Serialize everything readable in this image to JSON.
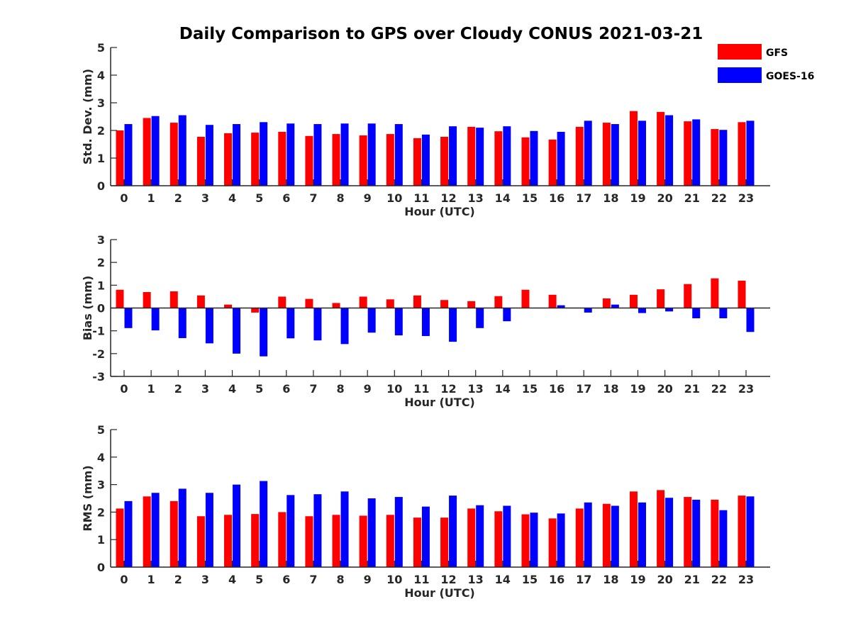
{
  "title": "Daily Comparison to GPS over Cloudy CONUS 2021-03-21",
  "legend": {
    "placement": "top-right",
    "entries": [
      {
        "name": "GFS",
        "color": "#ff0000"
      },
      {
        "name": "GOES-16",
        "color": "#0000ff"
      }
    ]
  },
  "chart_data": [
    {
      "type": "bar",
      "xlabel": "Hour (UTC)",
      "ylabel": "Std. Dev. (mm)",
      "ylim": [
        0,
        5
      ],
      "yticks": [
        "0",
        "1",
        "2",
        "3",
        "4",
        "5"
      ],
      "categories": [
        "0",
        "1",
        "2",
        "3",
        "4",
        "5",
        "6",
        "7",
        "8",
        "9",
        "10",
        "11",
        "12",
        "13",
        "14",
        "15",
        "16",
        "17",
        "18",
        "19",
        "20",
        "21",
        "22",
        "23"
      ],
      "series": [
        {
          "name": "GFS",
          "color": "#ff0000",
          "values": [
            2.0,
            2.45,
            2.28,
            1.77,
            1.9,
            1.92,
            1.95,
            1.8,
            1.87,
            1.82,
            1.87,
            1.72,
            1.77,
            2.13,
            1.97,
            1.75,
            1.67,
            2.13,
            2.28,
            2.7,
            2.67,
            2.33,
            2.05,
            2.3
          ]
        },
        {
          "name": "GOES-16",
          "color": "#0000ff",
          "values": [
            2.23,
            2.52,
            2.55,
            2.2,
            2.23,
            2.3,
            2.25,
            2.23,
            2.25,
            2.25,
            2.23,
            1.85,
            2.15,
            2.1,
            2.15,
            1.98,
            1.95,
            2.35,
            2.23,
            2.35,
            2.55,
            2.4,
            2.02,
            2.35
          ]
        }
      ]
    },
    {
      "type": "bar",
      "xlabel": "Hour (UTC)",
      "ylabel": "Bias (mm)",
      "ylim": [
        -3,
        3
      ],
      "yticks": [
        "-3",
        "-2",
        "-1",
        "0",
        "1",
        "2",
        "3"
      ],
      "categories": [
        "0",
        "1",
        "2",
        "3",
        "4",
        "5",
        "6",
        "7",
        "8",
        "9",
        "10",
        "11",
        "12",
        "13",
        "14",
        "15",
        "16",
        "17",
        "18",
        "19",
        "20",
        "21",
        "22",
        "23"
      ],
      "series": [
        {
          "name": "GFS",
          "color": "#ff0000",
          "values": [
            0.8,
            0.7,
            0.73,
            0.55,
            0.15,
            -0.2,
            0.5,
            0.4,
            0.22,
            0.5,
            0.38,
            0.55,
            0.35,
            0.3,
            0.52,
            0.8,
            0.58,
            0.0,
            0.42,
            0.58,
            0.82,
            1.05,
            1.3,
            1.2
          ]
        },
        {
          "name": "GOES-16",
          "color": "#0000ff",
          "values": [
            -0.88,
            -0.98,
            -1.32,
            -1.55,
            -2.0,
            -2.12,
            -1.33,
            -1.42,
            -1.58,
            -1.08,
            -1.2,
            -1.23,
            -1.48,
            -0.88,
            -0.58,
            0.0,
            0.12,
            -0.2,
            0.15,
            -0.22,
            -0.15,
            -0.45,
            -0.45,
            -1.05
          ]
        }
      ]
    },
    {
      "type": "bar",
      "xlabel": "Hour (UTC)",
      "ylabel": "RMS (mm)",
      "ylim": [
        0,
        5
      ],
      "yticks": [
        "0",
        "1",
        "2",
        "3",
        "4",
        "5"
      ],
      "categories": [
        "0",
        "1",
        "2",
        "3",
        "4",
        "5",
        "6",
        "7",
        "8",
        "9",
        "10",
        "11",
        "12",
        "13",
        "14",
        "15",
        "16",
        "17",
        "18",
        "19",
        "20",
        "21",
        "22",
        "23"
      ],
      "series": [
        {
          "name": "GFS",
          "color": "#ff0000",
          "values": [
            2.13,
            2.57,
            2.4,
            1.85,
            1.9,
            1.93,
            2.0,
            1.85,
            1.9,
            1.87,
            1.9,
            1.8,
            1.8,
            2.13,
            2.03,
            1.92,
            1.77,
            2.13,
            2.3,
            2.75,
            2.8,
            2.55,
            2.45,
            2.6
          ]
        },
        {
          "name": "GOES-16",
          "color": "#0000ff",
          "values": [
            2.4,
            2.7,
            2.85,
            2.7,
            3.0,
            3.13,
            2.62,
            2.65,
            2.75,
            2.5,
            2.55,
            2.2,
            2.6,
            2.25,
            2.23,
            1.98,
            1.95,
            2.35,
            2.23,
            2.35,
            2.52,
            2.45,
            2.07,
            2.57
          ]
        }
      ]
    }
  ]
}
